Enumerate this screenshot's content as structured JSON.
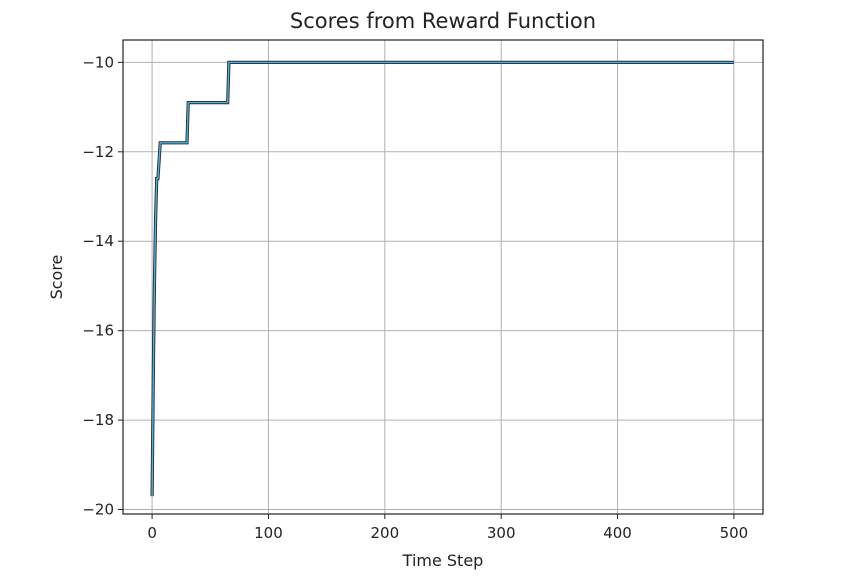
{
  "chart_data": {
    "type": "line",
    "title": "Scores from Reward Function",
    "xlabel": "Time Step",
    "ylabel": "Score",
    "xlim": [
      -25,
      525
    ],
    "ylim": [
      -20.1,
      -9.5
    ],
    "x_ticks": [
      0,
      100,
      200,
      300,
      400,
      500
    ],
    "y_ticks": [
      -20,
      -18,
      -16,
      -14,
      -12,
      -10
    ],
    "y_tick_labels": [
      "−20",
      "−18",
      "−16",
      "−14",
      "−12",
      "−10"
    ],
    "grid": true,
    "legend": "none",
    "series": [
      {
        "color": "#46b4e6",
        "x": [
          0,
          1,
          2,
          3,
          4,
          5,
          6,
          7,
          8,
          30,
          31,
          65,
          66,
          500
        ],
        "y": [
          -19.7,
          -17.0,
          -15.0,
          -13.5,
          -12.6,
          -12.6,
          -12.2,
          -11.8,
          -11.8,
          -11.8,
          -10.9,
          -10.9,
          -10.0,
          -10.0
        ]
      }
    ]
  }
}
